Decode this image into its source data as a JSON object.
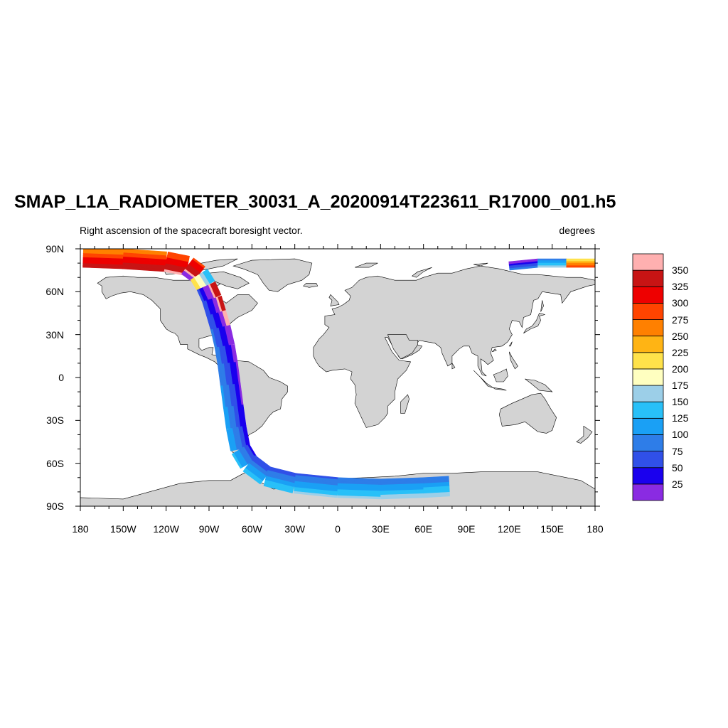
{
  "title": "SMAP_L1A_RADIOMETER_30031_A_20200914T223611_R17000_001.h5",
  "subtitle": "Right ascension of the spacecraft boresight vector.",
  "units": "degrees",
  "map": {
    "projection": "cylindrical equidistant",
    "lon_range": [
      -180,
      180
    ],
    "lat_range": [
      -90,
      90
    ],
    "land_color": "#d3d3d3",
    "ocean_color": "#ffffff",
    "coastline_color": "#000000"
  },
  "x_ticks": [
    {
      "value": -180,
      "label": "180"
    },
    {
      "value": -150,
      "label": "150W"
    },
    {
      "value": -120,
      "label": "120W"
    },
    {
      "value": -90,
      "label": "90W"
    },
    {
      "value": -60,
      "label": "60W"
    },
    {
      "value": -30,
      "label": "30W"
    },
    {
      "value": 0,
      "label": "0"
    },
    {
      "value": 30,
      "label": "30E"
    },
    {
      "value": 60,
      "label": "60E"
    },
    {
      "value": 90,
      "label": "90E"
    },
    {
      "value": 120,
      "label": "120E"
    },
    {
      "value": 150,
      "label": "150E"
    },
    {
      "value": 180,
      "label": "180"
    }
  ],
  "y_ticks": [
    {
      "value": 90,
      "label": "90N"
    },
    {
      "value": 60,
      "label": "60N"
    },
    {
      "value": 30,
      "label": "30N"
    },
    {
      "value": 0,
      "label": "0"
    },
    {
      "value": -30,
      "label": "30S"
    },
    {
      "value": -60,
      "label": "60S"
    },
    {
      "value": -90,
      "label": "90S"
    }
  ],
  "colorbar": {
    "levels": [
      25,
      50,
      75,
      100,
      125,
      150,
      175,
      200,
      225,
      250,
      275,
      300,
      325,
      350
    ],
    "labels": [
      "25",
      "50",
      "75",
      "100",
      "125",
      "150",
      "175",
      "200",
      "225",
      "250",
      "275",
      "300",
      "325",
      "350"
    ],
    "colors": [
      "#8a2be2",
      "#1a00ee",
      "#3050e8",
      "#2e7de8",
      "#1aa0f5",
      "#28c0f8",
      "#9ccfe8",
      "#ffffc0",
      "#ffe24a",
      "#ffb414",
      "#ff8000",
      "#ff4400",
      "#ee0000",
      "#c81414",
      "#ffb0b0"
    ]
  },
  "swath": {
    "track": [
      [
        -178,
        84
      ],
      [
        -150,
        83
      ],
      [
        -120,
        81
      ],
      [
        -105,
        78
      ],
      [
        -97,
        72
      ],
      [
        -92,
        64
      ],
      [
        -88,
        55
      ],
      [
        -85,
        45
      ],
      [
        -82,
        35
      ],
      [
        -79,
        22
      ],
      [
        -77,
        10
      ],
      [
        -75,
        -5
      ],
      [
        -73,
        -20
      ],
      [
        -71,
        -35
      ],
      [
        -68,
        -50
      ],
      [
        -62,
        -60
      ],
      [
        -50,
        -69
      ],
      [
        -30,
        -74
      ],
      [
        0,
        -77
      ],
      [
        30,
        -78
      ],
      [
        60,
        -77
      ],
      [
        78,
        -76
      ]
    ],
    "track_values": [
      295,
      305,
      315,
      330,
      345,
      8,
      20,
      30,
      40,
      50,
      58,
      65,
      72,
      80,
      90,
      98,
      105,
      112,
      118,
      122,
      125,
      128
    ],
    "east_cap": {
      "track": [
        [
          120,
          78
        ],
        [
          140,
          80
        ],
        [
          160,
          80
        ],
        [
          180,
          80
        ]
      ],
      "track_values": [
        40,
        60,
        200,
        300
      ]
    }
  }
}
